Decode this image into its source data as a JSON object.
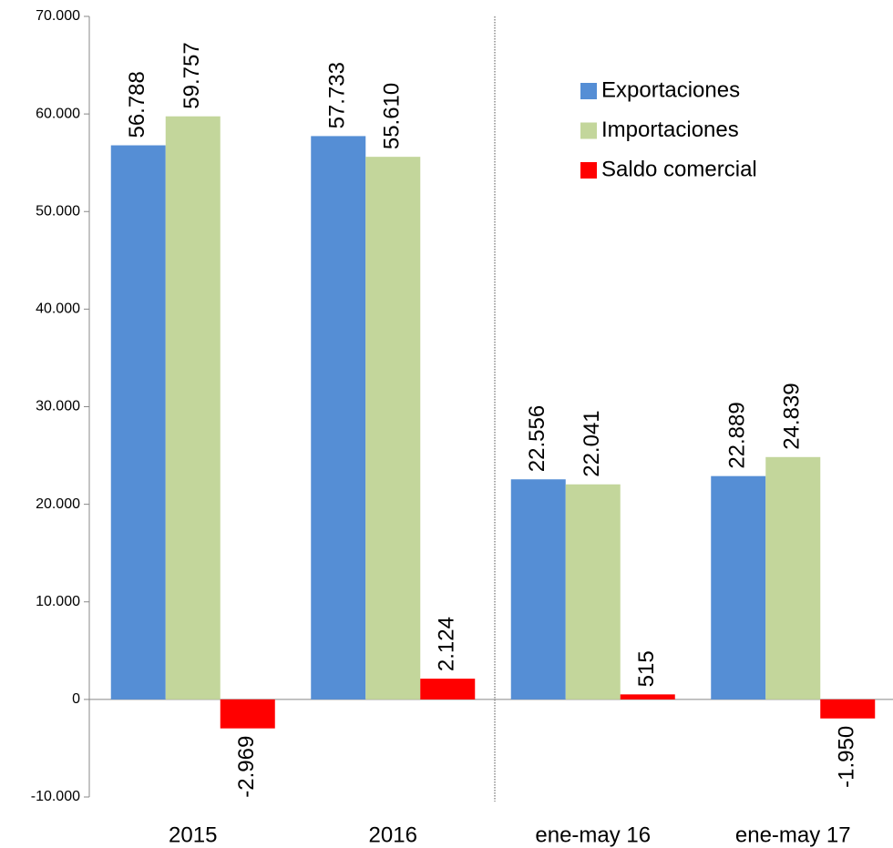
{
  "chart_data": {
    "type": "bar",
    "categories": [
      "2015",
      "2016",
      "ene-may 16",
      "ene-may 17"
    ],
    "series": [
      {
        "name": "Exportaciones",
        "color": "#558ed5",
        "values": [
          56788,
          57733,
          22556,
          22889
        ],
        "value_labels": [
          "56.788",
          "57.733",
          "22.556",
          "22.889"
        ]
      },
      {
        "name": "Importaciones",
        "color": "#c3d69b",
        "values": [
          59757,
          55610,
          22041,
          24839
        ],
        "value_labels": [
          "59.757",
          "55.610",
          "22.041",
          "24.839"
        ]
      },
      {
        "name": "Saldo comercial",
        "color": "#ff0000",
        "values": [
          -2969,
          2124,
          515,
          -1950
        ],
        "value_labels": [
          "-2.969",
          "2.124",
          "515",
          "-1.950"
        ]
      }
    ],
    "ylim": [
      -10000,
      70000
    ],
    "yticks": [
      {
        "value": -10000,
        "label": "-10.000"
      },
      0,
      {
        "value": 10000,
        "label": "10.000"
      },
      {
        "value": 20000,
        "label": "20.000"
      },
      {
        "value": 30000,
        "label": "30.000"
      },
      {
        "value": 40000,
        "label": "40.000"
      },
      {
        "value": 50000,
        "label": "50.000"
      },
      {
        "value": 60000,
        "label": "60.000"
      },
      {
        "value": 70000,
        "label": "70.000"
      }
    ],
    "grid": false,
    "legend": "upper right"
  }
}
